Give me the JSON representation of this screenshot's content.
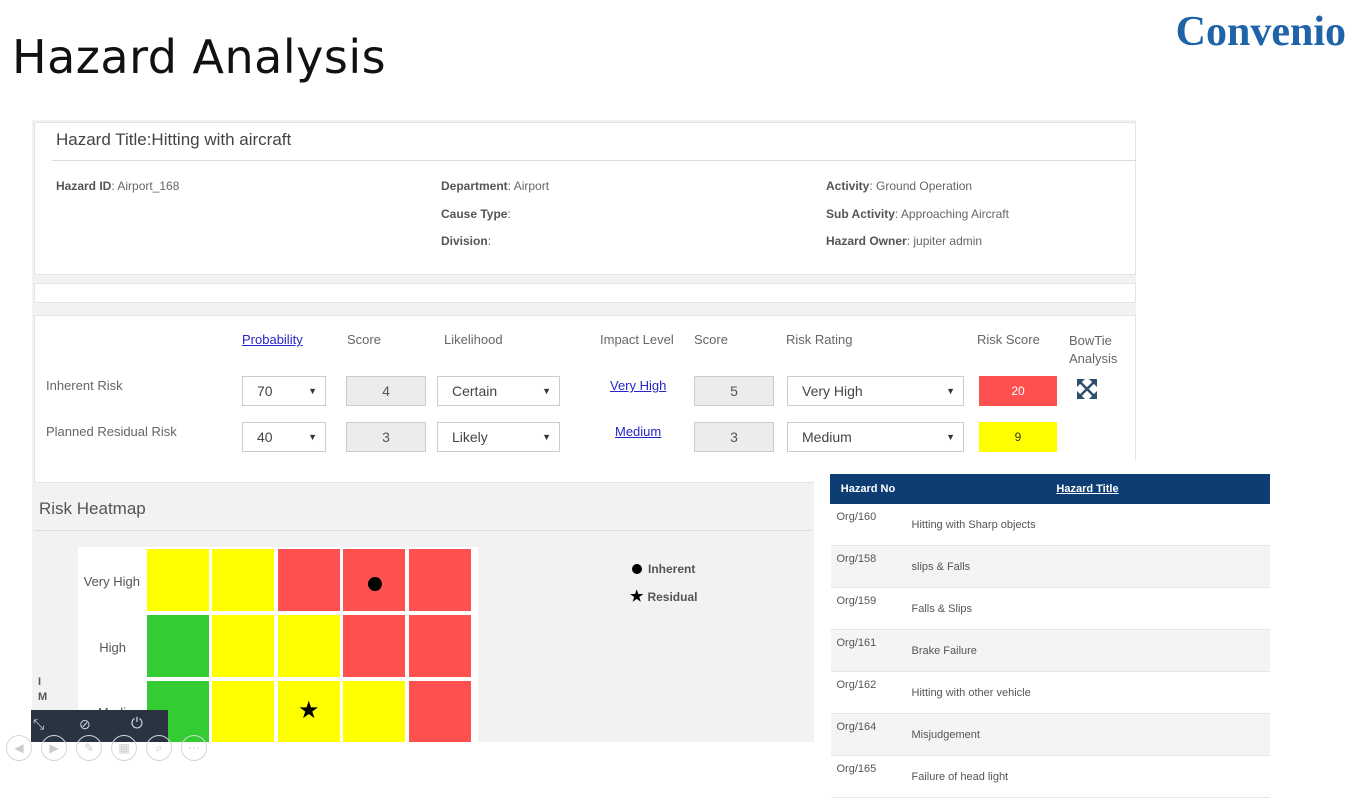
{
  "slide": {
    "title": "Hazard Analysis",
    "logo": "Convenio"
  },
  "hazard": {
    "title": "Hazard Title:Hitting with aircraft",
    "fields": [
      {
        "label": "Hazard ID",
        "value": ": Airport_168"
      },
      {
        "label": "Department",
        "value": ": Airport"
      },
      {
        "label": "Cause Type",
        "value": ":"
      },
      {
        "label": "Division",
        "value": ":"
      },
      {
        "label": "Activity",
        "value": ": Ground Operation"
      },
      {
        "label": "Sub Activity",
        "value": ": Approaching Aircraft"
      },
      {
        "label": "Hazard Owner",
        "value": ": jupiter admin"
      }
    ]
  },
  "risk": {
    "headers": [
      "Probability",
      "Score",
      "Likelihood",
      "Impact Level",
      "Score",
      "Risk Rating",
      "Risk Score",
      "BowTie Analysis"
    ],
    "rows": [
      {
        "label": "Inherent Risk",
        "probability": "70",
        "score": "4",
        "likelihood": "Certain",
        "impact": "Very High",
        "impact_score": "5",
        "rating": "Very High",
        "risk_score": "20",
        "risk_color": "#ff5050"
      },
      {
        "label": "Planned Residual Risk",
        "probability": "40",
        "score": "3",
        "likelihood": "Likely",
        "impact": "Medium",
        "impact_score": "3",
        "rating": "Medium",
        "risk_score": "9",
        "risk_color": "#ffff00"
      }
    ],
    "bowtie_icon": "expand-arrows-icon"
  },
  "heatmap": {
    "title": "Risk Heatmap",
    "y_labels": [
      "Very High",
      "High",
      "Medi"
    ],
    "axis_letters": [
      "I",
      "M"
    ],
    "legend": [
      {
        "label": "Inherent",
        "icon": "circle"
      },
      {
        "label": "Residual",
        "icon": "star"
      }
    ],
    "colors": {
      "red": "#ff5050",
      "yellow": "#ffff00",
      "green": "#33cc33"
    }
  },
  "hazard_table": {
    "headers": [
      "Hazard No",
      "Hazard Title"
    ],
    "rows": [
      [
        "Org/160",
        "Hitting with Sharp objects"
      ],
      [
        "Org/158",
        "slips & Falls"
      ],
      [
        "Org/159",
        "Falls & Slips"
      ],
      [
        "Org/161",
        "Brake Failure"
      ],
      [
        "Org/162",
        "Hitting with other vehicle"
      ],
      [
        "Org/164",
        "Misjudgement"
      ],
      [
        "Org/165",
        "Failure of head light"
      ]
    ]
  }
}
